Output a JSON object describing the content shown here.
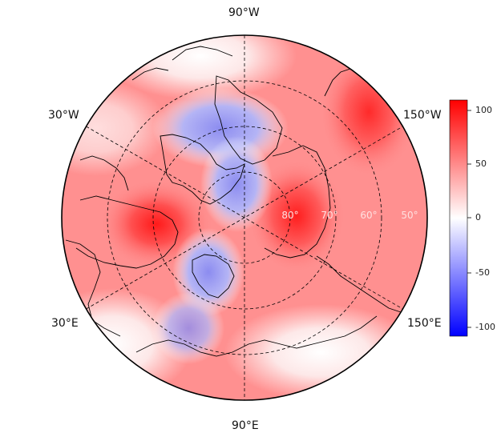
{
  "map": {
    "projection": "north-polar-stereographic",
    "longitude_labels": [
      "90°W",
      "30°W",
      "150°W",
      "30°E",
      "150°E",
      "90°E"
    ],
    "latitude_labels": [
      "80°",
      "70°",
      "60°",
      "50°"
    ]
  },
  "colorbar": {
    "ticks": [
      "100",
      "50",
      "0",
      "-50",
      "-100"
    ],
    "range": [
      -110,
      110
    ],
    "colors": {
      "max": "#ff0000",
      "mid": "#ffffff",
      "min": "#0000ff"
    }
  }
}
